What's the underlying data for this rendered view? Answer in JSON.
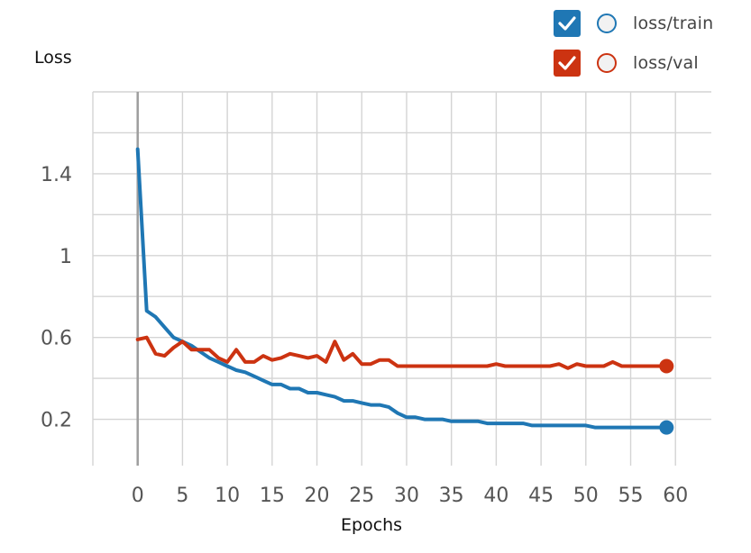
{
  "chart_data": {
    "type": "line",
    "xlabel": "Epochs",
    "ylabel": "Loss",
    "xlim": [
      -5,
      64
    ],
    "ylim": [
      0,
      1.8
    ],
    "xticks": [
      0,
      5,
      10,
      15,
      20,
      25,
      30,
      35,
      40,
      45,
      50,
      55,
      60
    ],
    "xtick_labels": [
      "0",
      "5",
      "10",
      "15",
      "20",
      "25",
      "30",
      "35",
      "40",
      "45",
      "50",
      "55",
      "60"
    ],
    "yticks": [
      0.2,
      0.6,
      1,
      1.4
    ],
    "ytick_labels": [
      "0.2",
      "0.6",
      "1",
      "1.4"
    ],
    "grid": true,
    "legend_position": "top-right",
    "series": [
      {
        "name": "loss/train",
        "color": "#1f77b4",
        "x": [
          0,
          1,
          2,
          3,
          4,
          5,
          6,
          7,
          8,
          9,
          10,
          11,
          12,
          13,
          14,
          15,
          16,
          17,
          18,
          19,
          20,
          21,
          22,
          23,
          24,
          25,
          26,
          27,
          28,
          29,
          30,
          31,
          32,
          33,
          34,
          35,
          36,
          37,
          38,
          39,
          40,
          41,
          42,
          43,
          44,
          45,
          46,
          47,
          48,
          49,
          50,
          51,
          52,
          53,
          54,
          55,
          56,
          57,
          58,
          59
        ],
        "y": [
          1.52,
          0.73,
          0.7,
          0.65,
          0.6,
          0.58,
          0.56,
          0.53,
          0.5,
          0.48,
          0.46,
          0.44,
          0.43,
          0.41,
          0.39,
          0.37,
          0.37,
          0.35,
          0.35,
          0.33,
          0.33,
          0.32,
          0.31,
          0.29,
          0.29,
          0.28,
          0.27,
          0.27,
          0.26,
          0.23,
          0.21,
          0.21,
          0.2,
          0.2,
          0.2,
          0.19,
          0.19,
          0.19,
          0.19,
          0.18,
          0.18,
          0.18,
          0.18,
          0.18,
          0.17,
          0.17,
          0.17,
          0.17,
          0.17,
          0.17,
          0.17,
          0.16,
          0.16,
          0.16,
          0.16,
          0.16,
          0.16,
          0.16,
          0.16,
          0.16
        ]
      },
      {
        "name": "loss/val",
        "color": "#cc3311",
        "x": [
          0,
          1,
          2,
          3,
          4,
          5,
          6,
          7,
          8,
          9,
          10,
          11,
          12,
          13,
          14,
          15,
          16,
          17,
          18,
          19,
          20,
          21,
          22,
          23,
          24,
          25,
          26,
          27,
          28,
          29,
          30,
          31,
          32,
          33,
          34,
          35,
          36,
          37,
          38,
          39,
          40,
          41,
          42,
          43,
          44,
          45,
          46,
          47,
          48,
          49,
          50,
          51,
          52,
          53,
          54,
          55,
          56,
          57,
          58,
          59
        ],
        "y": [
          0.59,
          0.6,
          0.52,
          0.51,
          0.55,
          0.58,
          0.54,
          0.54,
          0.54,
          0.5,
          0.48,
          0.54,
          0.48,
          0.48,
          0.51,
          0.49,
          0.5,
          0.52,
          0.51,
          0.5,
          0.51,
          0.48,
          0.58,
          0.49,
          0.52,
          0.47,
          0.47,
          0.49,
          0.49,
          0.46,
          0.46,
          0.46,
          0.46,
          0.46,
          0.46,
          0.46,
          0.46,
          0.46,
          0.46,
          0.46,
          0.47,
          0.46,
          0.46,
          0.46,
          0.46,
          0.46,
          0.46,
          0.47,
          0.45,
          0.47,
          0.46,
          0.46,
          0.46,
          0.48,
          0.46,
          0.46,
          0.46,
          0.46,
          0.46,
          0.46
        ]
      }
    ]
  },
  "colors": {
    "grid": "#d4d4d4",
    "zero_line": "#9e9e9e",
    "tick_label": "#555555"
  }
}
